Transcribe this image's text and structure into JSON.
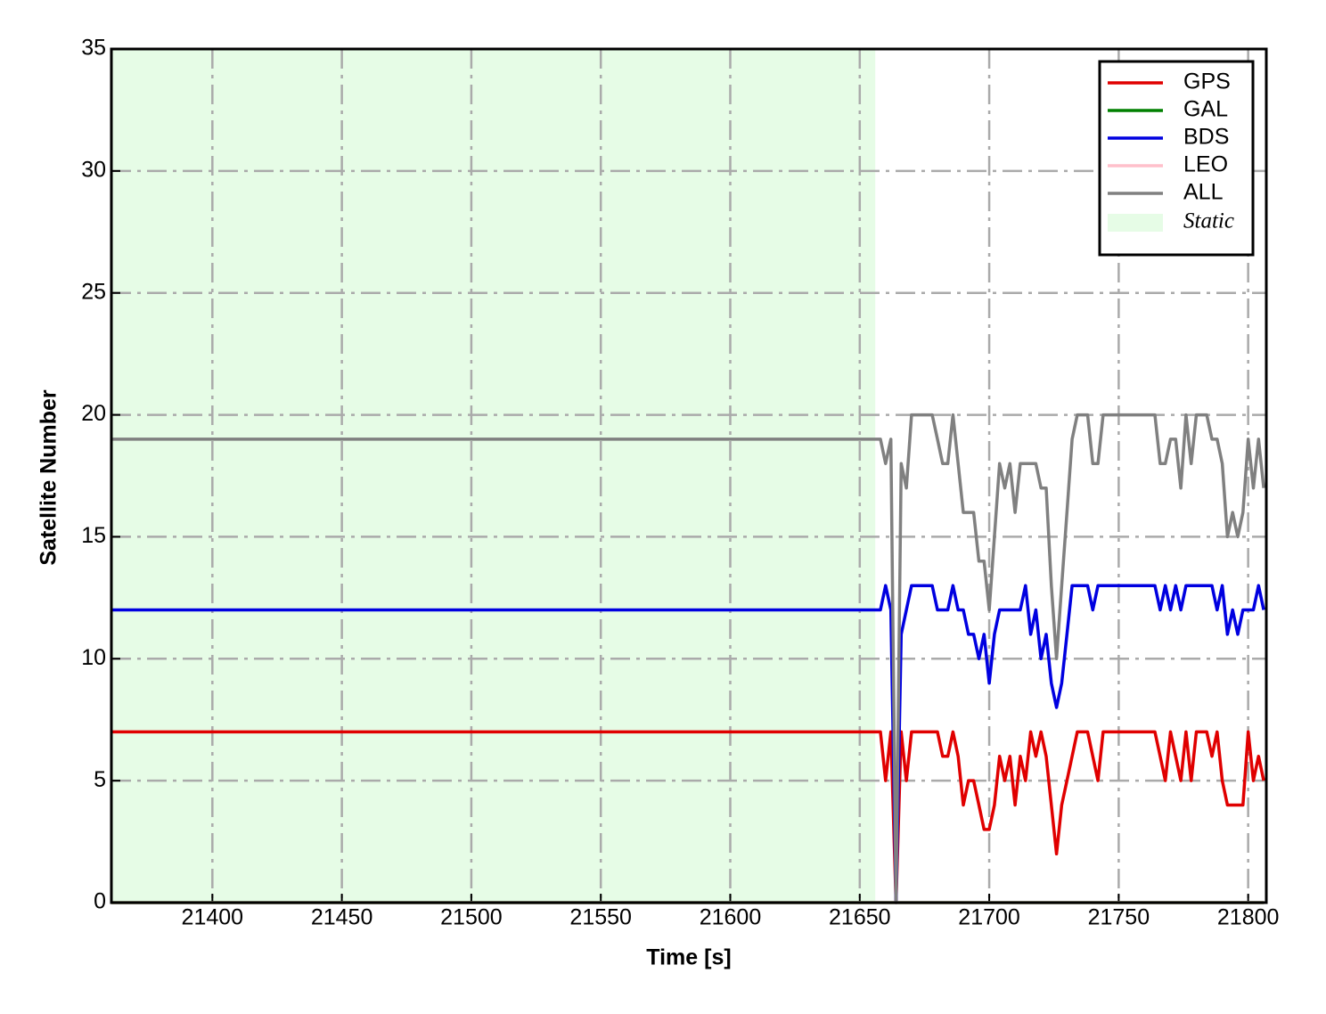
{
  "chart_data": {
    "type": "line",
    "xlabel": "Time [s]",
    "ylabel": "Satellite Number",
    "x": [
      21361,
      21657,
      21658,
      21660,
      21662,
      21664,
      21666,
      21668,
      21670,
      21672,
      21674,
      21676,
      21678,
      21680,
      21682,
      21684,
      21686,
      21688,
      21690,
      21692,
      21694,
      21696,
      21698,
      21700,
      21702,
      21704,
      21706,
      21708,
      21710,
      21712,
      21714,
      21716,
      21718,
      21720,
      21722,
      21724,
      21726,
      21728,
      21730,
      21732,
      21734,
      21736,
      21738,
      21740,
      21742,
      21744,
      21746,
      21748,
      21750,
      21752,
      21754,
      21756,
      21758,
      21760,
      21762,
      21764,
      21766,
      21768,
      21770,
      21772,
      21774,
      21776,
      21778,
      21780,
      21782,
      21784,
      21786,
      21788,
      21790,
      21792,
      21794,
      21796,
      21798,
      21800,
      21802,
      21804,
      21806
    ],
    "series": [
      {
        "name": "GPS",
        "color": "#e00000",
        "values": [
          7,
          7,
          7,
          5,
          7,
          0,
          7,
          5,
          7,
          7,
          7,
          7,
          7,
          7,
          6,
          6,
          7,
          6,
          4,
          5,
          5,
          4,
          3,
          3,
          4,
          6,
          5,
          6,
          4,
          6,
          5,
          7,
          6,
          7,
          6,
          4,
          2,
          4,
          5,
          6,
          7,
          7,
          7,
          6,
          5,
          7,
          7,
          7,
          7,
          7,
          7,
          7,
          7,
          7,
          7,
          7,
          6,
          5,
          7,
          6,
          5,
          7,
          5,
          7,
          7,
          7,
          6,
          7,
          5,
          4,
          4,
          4,
          4,
          7,
          5,
          6,
          5
        ]
      },
      {
        "name": "GAL",
        "color": "#008000",
        "values": [
          0,
          0,
          0,
          0,
          0,
          0,
          0,
          0,
          0,
          0,
          0,
          0,
          0,
          0,
          0,
          0,
          0,
          0,
          0,
          0,
          0,
          0,
          0,
          0,
          0,
          0,
          0,
          0,
          0,
          0,
          0,
          0,
          0,
          0,
          0,
          0,
          0,
          0,
          0,
          0,
          0,
          0,
          0,
          0,
          0,
          0,
          0,
          0,
          0,
          0,
          0,
          0,
          0,
          0,
          0,
          0,
          0,
          0,
          0,
          0,
          0,
          0,
          0,
          0,
          0,
          0,
          0,
          0,
          0,
          0,
          0,
          0,
          0,
          0,
          0,
          0,
          0
        ]
      },
      {
        "name": "BDS",
        "color": "#0000e0",
        "values": [
          12,
          12,
          12,
          13,
          12,
          0,
          11,
          12,
          13,
          13,
          13,
          13,
          13,
          12,
          12,
          12,
          13,
          12,
          12,
          11,
          11,
          10,
          11,
          9,
          11,
          12,
          12,
          12,
          12,
          12,
          13,
          11,
          12,
          10,
          11,
          9,
          8,
          9,
          11,
          13,
          13,
          13,
          13,
          12,
          13,
          13,
          13,
          13,
          13,
          13,
          13,
          13,
          13,
          13,
          13,
          13,
          12,
          13,
          12,
          13,
          12,
          13,
          13,
          13,
          13,
          13,
          13,
          12,
          13,
          11,
          12,
          11,
          12,
          12,
          12,
          13,
          12
        ]
      },
      {
        "name": "LEO",
        "color": "#ffc0cb",
        "values": [
          0,
          0,
          0,
          0,
          0,
          0,
          0,
          0,
          0,
          0,
          0,
          0,
          0,
          0,
          0,
          0,
          0,
          0,
          0,
          0,
          0,
          0,
          0,
          0,
          0,
          0,
          0,
          0,
          0,
          0,
          0,
          0,
          0,
          0,
          0,
          0,
          0,
          0,
          0,
          0,
          0,
          0,
          0,
          0,
          0,
          0,
          0,
          0,
          0,
          0,
          0,
          0,
          0,
          0,
          0,
          0,
          0,
          0,
          0,
          0,
          0,
          0,
          0,
          0,
          0,
          0,
          0,
          0,
          0,
          0,
          0,
          0,
          0,
          0,
          0,
          0,
          0
        ]
      },
      {
        "name": "ALL",
        "color": "#808080",
        "values": [
          19,
          19,
          19,
          18,
          19,
          0,
          18,
          17,
          20,
          20,
          20,
          20,
          20,
          19,
          18,
          18,
          20,
          18,
          16,
          16,
          16,
          14,
          14,
          12,
          15,
          18,
          17,
          18,
          16,
          18,
          18,
          18,
          18,
          17,
          17,
          13,
          10,
          13,
          16,
          19,
          20,
          20,
          20,
          18,
          18,
          20,
          20,
          20,
          20,
          20,
          20,
          20,
          20,
          20,
          20,
          20,
          18,
          18,
          19,
          19,
          17,
          20,
          18,
          20,
          20,
          20,
          19,
          19,
          18,
          15,
          16,
          15,
          16,
          19,
          17,
          19,
          17
        ]
      }
    ],
    "shaded_region": {
      "label": "Static",
      "x_range": [
        21361,
        21656
      ],
      "color": "#e6fce6"
    },
    "xlim": [
      21361,
      21807
    ],
    "xticks": [
      21400,
      21450,
      21500,
      21550,
      21600,
      21650,
      21700,
      21750,
      21800
    ],
    "ylim": [
      0,
      35
    ],
    "yticks": [
      0,
      5,
      10,
      15,
      20,
      25,
      30,
      35
    ],
    "grid": true,
    "legend": "upper right"
  }
}
